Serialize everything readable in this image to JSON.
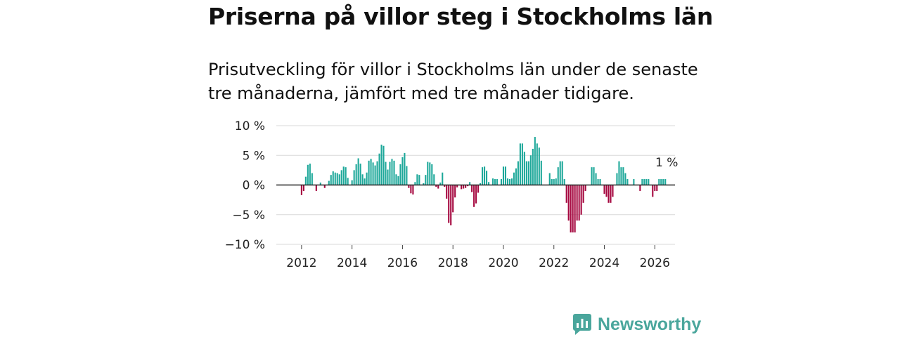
{
  "title": "Priserna på villor steg i Stockholms län",
  "subtitle": "Prisutveckling för villor i Stockholms län under de senaste tre månaderna, jämfört med tre månader tidigare.",
  "brand": {
    "name": "Newsworthy",
    "color": "#4aa69c"
  },
  "colors": {
    "positive": "#1ea89a",
    "negative": "#a5073f",
    "grid": "#d9d9d9",
    "zero_line": "#222222"
  },
  "chart_data": {
    "type": "bar",
    "title": "Priserna på villor steg i Stockholms län",
    "xlabel": "",
    "ylabel": "",
    "ylim": [
      -10,
      10
    ],
    "yticks": [
      10,
      5,
      0,
      -5,
      -10
    ],
    "ytick_labels": [
      "10 %",
      "5 %",
      "0 %",
      "−5 %",
      "−10 %"
    ],
    "xlim": [
      2011.0,
      2026.8
    ],
    "xticks": [
      2012,
      2014,
      2016,
      2018,
      2020,
      2022,
      2024,
      2026
    ],
    "xtick_labels": [
      "2012",
      "2014",
      "2016",
      "2018",
      "2020",
      "2022",
      "2024",
      "2026"
    ],
    "grid": true,
    "start": {
      "year": 2012,
      "month": 1
    },
    "frequency": "monthly",
    "annotation": {
      "text": "1 %",
      "position": "last-bar"
    },
    "values": [
      -1.7,
      -1,
      1.4,
      3.4,
      3.6,
      2,
      0,
      -1,
      0,
      0.4,
      0,
      -0.5,
      0,
      0.7,
      1.7,
      2.3,
      2.1,
      2,
      1.8,
      2.5,
      3.1,
      3,
      1.2,
      0,
      0.8,
      2.5,
      3.5,
      4.5,
      3.6,
      1.8,
      1.1,
      2.1,
      4.1,
      4.4,
      3.8,
      3.3,
      4,
      5.3,
      6.8,
      6.6,
      3.9,
      2.6,
      3.9,
      4.4,
      4.1,
      1.8,
      1.5,
      3.5,
      4.7,
      5.4,
      3.2,
      -0.5,
      -1.4,
      -1.6,
      0.5,
      1.8,
      1.7,
      0,
      0.3,
      1.7,
      3.9,
      3.8,
      3.5,
      1.8,
      -0.3,
      -0.6,
      0.4,
      2.1,
      -0.3,
      -2.3,
      -6.4,
      -6.8,
      -4.6,
      -2.1,
      -0.4,
      0,
      -0.7,
      -0.6,
      -0.5,
      -0.2,
      0.5,
      -1.2,
      -3.7,
      -3.1,
      -1.3,
      0.3,
      3,
      3.1,
      2.4,
      0.5,
      0,
      1.1,
      1,
      1,
      0,
      1,
      3.1,
      3.1,
      1.1,
      1,
      1.1,
      2.1,
      2.8,
      4,
      7,
      7,
      5.6,
      4,
      4,
      5,
      6.1,
      8.1,
      7,
      6.3,
      4.1,
      0,
      0,
      0,
      2,
      1,
      1,
      1.1,
      3,
      4,
      4,
      1,
      -3,
      -6,
      -8,
      -8,
      -8,
      -6,
      -6,
      -5,
      -3,
      -1,
      0,
      0,
      3,
      3,
      2,
      1,
      1,
      0,
      -1.5,
      -2,
      -3,
      -3,
      -2,
      0,
      2,
      4,
      3,
      3,
      2,
      1,
      0,
      0,
      1,
      0,
      0,
      -1,
      1,
      1,
      1,
      1,
      0,
      -2,
      -1,
      -1,
      1,
      1,
      1,
      1
    ]
  }
}
